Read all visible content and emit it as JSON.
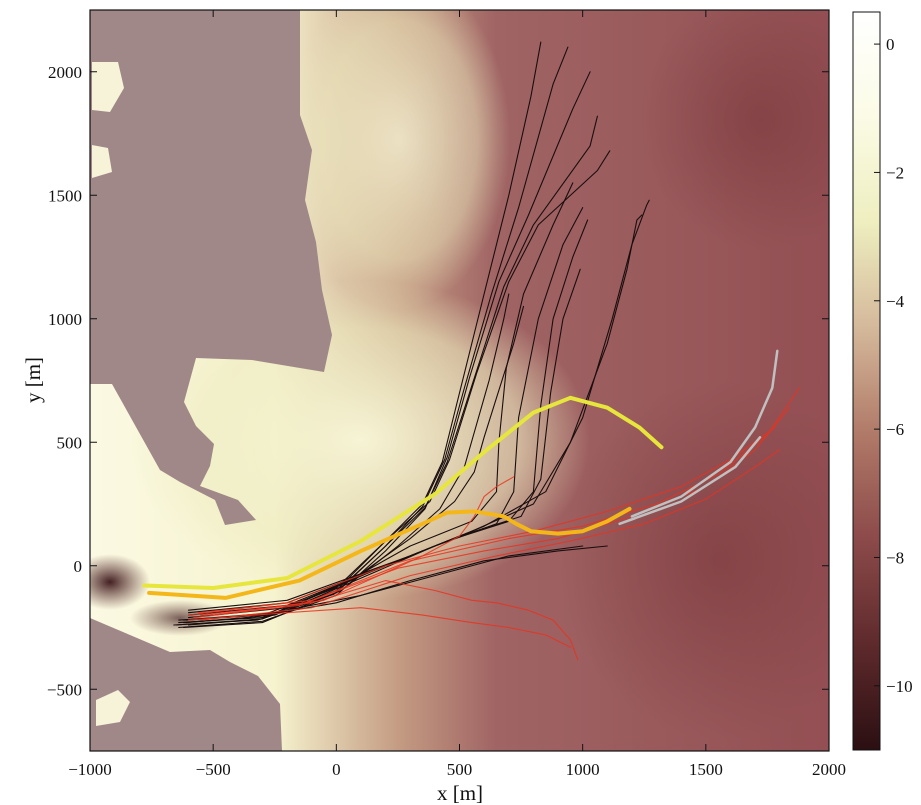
{
  "chart_data": {
    "type": "heatmap",
    "title": "",
    "xlabel": "x [m]",
    "ylabel": "y [m]",
    "xlim": [
      -1000,
      2000
    ],
    "ylim": [
      -750,
      2250
    ],
    "xticks": [
      -1000,
      -500,
      0,
      500,
      1000,
      1500,
      2000
    ],
    "xtick_labels": [
      "−1000",
      "−500",
      "0",
      "500",
      "1000",
      "1500",
      "2000"
    ],
    "yticks": [
      -500,
      0,
      500,
      1000,
      1500,
      2000
    ],
    "ytick_labels": [
      "−500",
      "0",
      "500",
      "1000",
      "1500",
      "2000"
    ],
    "grid": false,
    "legend": "none",
    "colorbar": {
      "vmin": -11,
      "vmax": 0.5,
      "ticks": [
        0,
        -2,
        -4,
        -6,
        -8,
        -10
      ],
      "tick_labels": [
        "0",
        "−2",
        "−4",
        "−6",
        "−8",
        "−10"
      ],
      "colors": [
        "#2b0f12",
        "#5e2a2c",
        "#8c4a4a",
        "#b07a68",
        "#d4b89a",
        "#eeeebf",
        "#fbfbe6",
        "#ffffff"
      ]
    },
    "land_color": "#a08888",
    "series": [
      {
        "color": "#1a0e0e",
        "points": [
          [
            -640,
            -230
          ],
          [
            -300,
            -210
          ],
          [
            0,
            -100
          ],
          [
            200,
            100
          ],
          [
            350,
            250
          ],
          [
            430,
            420
          ],
          [
            500,
            700
          ],
          [
            600,
            1100
          ],
          [
            700,
            1500
          ],
          [
            790,
            1900
          ],
          [
            830,
            2120
          ]
        ]
      },
      {
        "color": "#1a0e0e",
        "points": [
          [
            -650,
            -240
          ],
          [
            -300,
            -215
          ],
          [
            0,
            -110
          ],
          [
            200,
            80
          ],
          [
            350,
            240
          ],
          [
            440,
            430
          ],
          [
            520,
            720
          ],
          [
            630,
            1100
          ],
          [
            740,
            1450
          ],
          [
            880,
            1950
          ],
          [
            940,
            2100
          ]
        ]
      },
      {
        "color": "#1a0e0e",
        "points": [
          [
            -640,
            -250
          ],
          [
            -300,
            -225
          ],
          [
            0,
            -120
          ],
          [
            200,
            60
          ],
          [
            360,
            230
          ],
          [
            450,
            440
          ],
          [
            540,
            760
          ],
          [
            660,
            1150
          ],
          [
            780,
            1420
          ],
          [
            960,
            1850
          ],
          [
            1030,
            2000
          ]
        ]
      },
      {
        "color": "#1a0e0e",
        "points": [
          [
            -660,
            -240
          ],
          [
            -320,
            -220
          ],
          [
            -10,
            -115
          ],
          [
            190,
            70
          ],
          [
            360,
            235
          ],
          [
            450,
            420
          ],
          [
            560,
            760
          ],
          [
            680,
            1130
          ],
          [
            800,
            1380
          ],
          [
            1030,
            1700
          ],
          [
            1060,
            1820
          ]
        ]
      },
      {
        "color": "#1a0e0e",
        "points": [
          [
            -640,
            -220
          ],
          [
            -300,
            -200
          ],
          [
            0,
            -90
          ],
          [
            210,
            110
          ],
          [
            380,
            260
          ],
          [
            460,
            430
          ],
          [
            570,
            780
          ],
          [
            700,
            1150
          ],
          [
            820,
            1380
          ],
          [
            1060,
            1600
          ],
          [
            1110,
            1680
          ]
        ]
      },
      {
        "color": "#1a0e0e",
        "points": [
          [
            -620,
            -250
          ],
          [
            -300,
            -230
          ],
          [
            20,
            -100
          ],
          [
            250,
            80
          ],
          [
            420,
            230
          ],
          [
            520,
            400
          ],
          [
            620,
            750
          ],
          [
            680,
            1000
          ],
          [
            700,
            1100
          ]
        ]
      },
      {
        "color": "#1a0e0e",
        "points": [
          [
            -600,
            -240
          ],
          [
            -300,
            -215
          ],
          [
            60,
            -60
          ],
          [
            300,
            110
          ],
          [
            480,
            260
          ],
          [
            560,
            380
          ],
          [
            600,
            520
          ],
          [
            650,
            680
          ],
          [
            720,
            900
          ],
          [
            760,
            1050
          ]
        ]
      },
      {
        "color": "#1a0e0e",
        "points": [
          [
            -620,
            -220
          ],
          [
            -250,
            -190
          ],
          [
            50,
            -60
          ],
          [
            300,
            80
          ],
          [
            550,
            180
          ],
          [
            650,
            300
          ],
          [
            660,
            500
          ],
          [
            690,
            800
          ],
          [
            760,
            1100
          ],
          [
            880,
            1380
          ],
          [
            960,
            1550
          ]
        ]
      },
      {
        "color": "#1a0e0e",
        "points": [
          [
            -610,
            -230
          ],
          [
            -250,
            -200
          ],
          [
            100,
            -50
          ],
          [
            400,
            80
          ],
          [
            650,
            170
          ],
          [
            720,
            300
          ],
          [
            740,
            600
          ],
          [
            820,
            1000
          ],
          [
            920,
            1300
          ],
          [
            1000,
            1450
          ]
        ]
      },
      {
        "color": "#1a0e0e",
        "points": [
          [
            -600,
            -210
          ],
          [
            -200,
            -170
          ],
          [
            150,
            -20
          ],
          [
            450,
            100
          ],
          [
            700,
            180
          ],
          [
            800,
            300
          ],
          [
            830,
            650
          ],
          [
            880,
            1000
          ],
          [
            960,
            1250
          ],
          [
            1020,
            1400
          ]
        ]
      },
      {
        "color": "#1a0e0e",
        "points": [
          [
            -600,
            -200
          ],
          [
            -200,
            -160
          ],
          [
            200,
            0
          ],
          [
            500,
            120
          ],
          [
            750,
            200
          ],
          [
            830,
            350
          ],
          [
            870,
            700
          ],
          [
            920,
            1000
          ],
          [
            990,
            1200
          ]
        ]
      },
      {
        "color": "#1a0e0e",
        "points": [
          [
            -600,
            -190
          ],
          [
            -200,
            -150
          ],
          [
            250,
            20
          ],
          [
            550,
            140
          ],
          [
            800,
            250
          ],
          [
            950,
            500
          ],
          [
            1100,
            900
          ],
          [
            1180,
            1200
          ],
          [
            1220,
            1400
          ],
          [
            1240,
            1420
          ]
        ]
      },
      {
        "color": "#1a0e0e",
        "points": [
          [
            -600,
            -180
          ],
          [
            -200,
            -140
          ],
          [
            300,
            40
          ],
          [
            600,
            160
          ],
          [
            850,
            300
          ],
          [
            1000,
            600
          ],
          [
            1120,
            1000
          ],
          [
            1200,
            1300
          ],
          [
            1260,
            1460
          ],
          [
            1270,
            1480
          ]
        ]
      },
      {
        "color": "#1a0e0e",
        "points": [
          [
            -620,
            -230
          ],
          [
            -350,
            -210
          ],
          [
            0,
            -150
          ],
          [
            300,
            -60
          ],
          [
            600,
            20
          ],
          [
            900,
            60
          ],
          [
            1100,
            80
          ]
        ]
      },
      {
        "color": "#1a0e0e",
        "points": [
          [
            -610,
            -220
          ],
          [
            -300,
            -200
          ],
          [
            100,
            -120
          ],
          [
            400,
            -40
          ],
          [
            700,
            40
          ],
          [
            1000,
            80
          ]
        ]
      },
      {
        "color": "#e8321e",
        "points": [
          [
            -600,
            -200
          ],
          [
            -200,
            -150
          ],
          [
            200,
            0
          ],
          [
            500,
            80
          ],
          [
            800,
            140
          ],
          [
            1100,
            220
          ],
          [
            1400,
            320
          ],
          [
            1600,
            430
          ],
          [
            1780,
            560
          ]
        ]
      },
      {
        "color": "#e8321e",
        "points": [
          [
            -580,
            -210
          ],
          [
            -150,
            -160
          ],
          [
            250,
            -10
          ],
          [
            600,
            60
          ],
          [
            900,
            110
          ],
          [
            1200,
            200
          ],
          [
            1500,
            320
          ],
          [
            1700,
            470
          ],
          [
            1840,
            640
          ]
        ]
      },
      {
        "color": "#e8321e",
        "points": [
          [
            -560,
            -190
          ],
          [
            -100,
            -140
          ],
          [
            300,
            20
          ],
          [
            700,
            110
          ],
          [
            1000,
            160
          ],
          [
            1300,
            250
          ],
          [
            1550,
            370
          ],
          [
            1750,
            530
          ],
          [
            1880,
            720
          ]
        ]
      },
      {
        "color": "#e8321e",
        "points": [
          [
            -550,
            -220
          ],
          [
            -100,
            -170
          ],
          [
            300,
            -40
          ],
          [
            650,
            40
          ],
          [
            950,
            100
          ],
          [
            1250,
            170
          ],
          [
            1500,
            270
          ],
          [
            1700,
            400
          ],
          [
            1800,
            470
          ]
        ]
      },
      {
        "color": "#e8321e",
        "points": [
          [
            -500,
            -200
          ],
          [
            -50,
            -140
          ],
          [
            350,
            40
          ],
          [
            500,
            120
          ],
          [
            560,
            200
          ],
          [
            600,
            280
          ],
          [
            650,
            320
          ],
          [
            720,
            360
          ]
        ]
      },
      {
        "color": "#e8321e",
        "points": [
          [
            -550,
            -200
          ],
          [
            -100,
            -150
          ],
          [
            200,
            -60
          ],
          [
            400,
            -100
          ],
          [
            550,
            -140
          ],
          [
            650,
            -150
          ],
          [
            780,
            -180
          ],
          [
            880,
            -220
          ],
          [
            950,
            -300
          ],
          [
            980,
            -380
          ]
        ]
      },
      {
        "color": "#e8321e",
        "points": [
          [
            -600,
            -220
          ],
          [
            -200,
            -190
          ],
          [
            100,
            -170
          ],
          [
            350,
            -200
          ],
          [
            550,
            -230
          ],
          [
            700,
            -250
          ],
          [
            850,
            -280
          ],
          [
            950,
            -330
          ]
        ]
      },
      {
        "color": "#c0c0c0",
        "points": [
          [
            1200,
            200
          ],
          [
            1400,
            280
          ],
          [
            1600,
            420
          ],
          [
            1700,
            560
          ],
          [
            1770,
            720
          ],
          [
            1790,
            870
          ]
        ]
      },
      {
        "color": "#c0c0c0",
        "points": [
          [
            1150,
            170
          ],
          [
            1400,
            260
          ],
          [
            1620,
            400
          ],
          [
            1720,
            520
          ]
        ]
      },
      {
        "color": "#e6e63c",
        "points": [
          [
            -780,
            -80
          ],
          [
            -500,
            -90
          ],
          [
            -200,
            -50
          ],
          [
            100,
            100
          ],
          [
            400,
            290
          ],
          [
            600,
            460
          ],
          [
            800,
            620
          ],
          [
            950,
            680
          ],
          [
            1100,
            640
          ],
          [
            1230,
            560
          ],
          [
            1320,
            480
          ]
        ]
      },
      {
        "color": "#f4b71a",
        "points": [
          [
            -760,
            -110
          ],
          [
            -450,
            -130
          ],
          [
            -150,
            -60
          ],
          [
            100,
            60
          ],
          [
            350,
            170
          ],
          [
            450,
            215
          ],
          [
            560,
            220
          ],
          [
            680,
            200
          ],
          [
            730,
            170
          ],
          [
            790,
            140
          ],
          [
            900,
            130
          ],
          [
            1000,
            140
          ],
          [
            1100,
            180
          ],
          [
            1190,
            230
          ]
        ]
      }
    ]
  }
}
